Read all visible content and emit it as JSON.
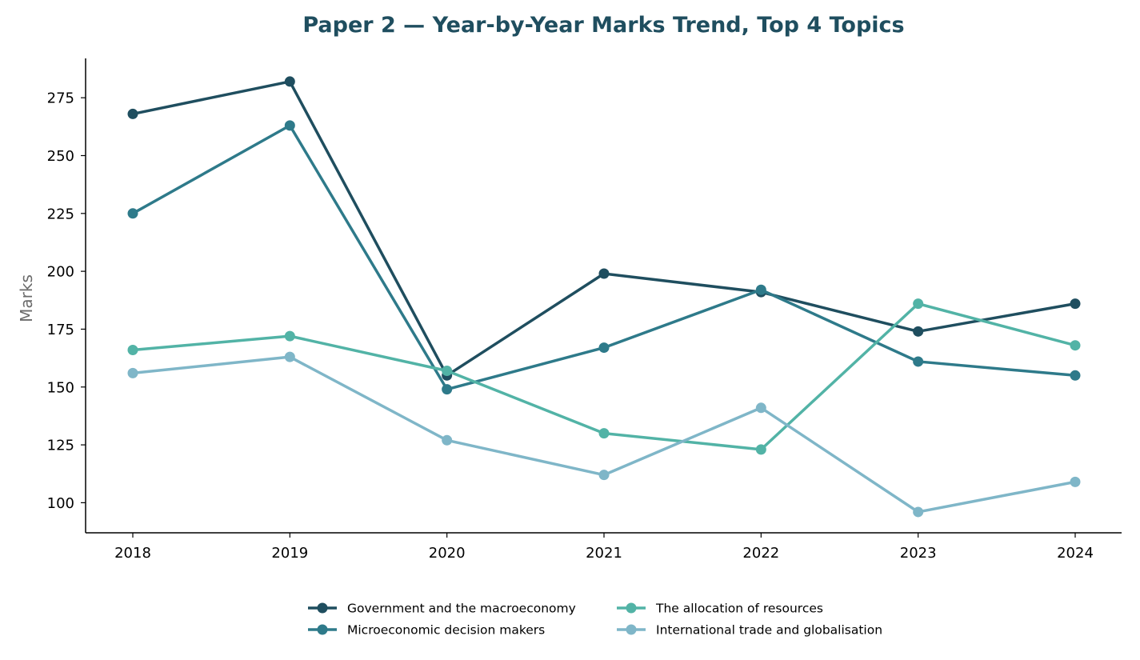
{
  "chart_data": {
    "type": "line",
    "title": "Paper 2 — Year-by-Year Marks Trend, Top 4 Topics",
    "xlabel": "",
    "ylabel": "Marks",
    "x": [
      "2018",
      "2019",
      "2020",
      "2021",
      "2022",
      "2023",
      "2024"
    ],
    "ylim": [
      87,
      292
    ],
    "yticks": [
      100,
      125,
      150,
      175,
      200,
      225,
      250,
      275
    ],
    "grid": false,
    "legend_position": "bottom-center",
    "series": [
      {
        "name": "Government and the macroeconomy",
        "color": "#1f4e5f",
        "values": [
          268,
          282,
          155,
          199,
          191,
          174,
          186
        ]
      },
      {
        "name": "Microeconomic decision makers",
        "color": "#2e7a8a",
        "values": [
          225,
          263,
          149,
          167,
          192,
          161,
          155
        ]
      },
      {
        "name": "The allocation of resources",
        "color": "#52b3a6",
        "values": [
          166,
          172,
          157,
          130,
          123,
          186,
          168
        ]
      },
      {
        "name": "International trade and globalisation",
        "color": "#7fb6c8",
        "values": [
          156,
          163,
          127,
          112,
          141,
          96,
          109
        ]
      }
    ]
  }
}
